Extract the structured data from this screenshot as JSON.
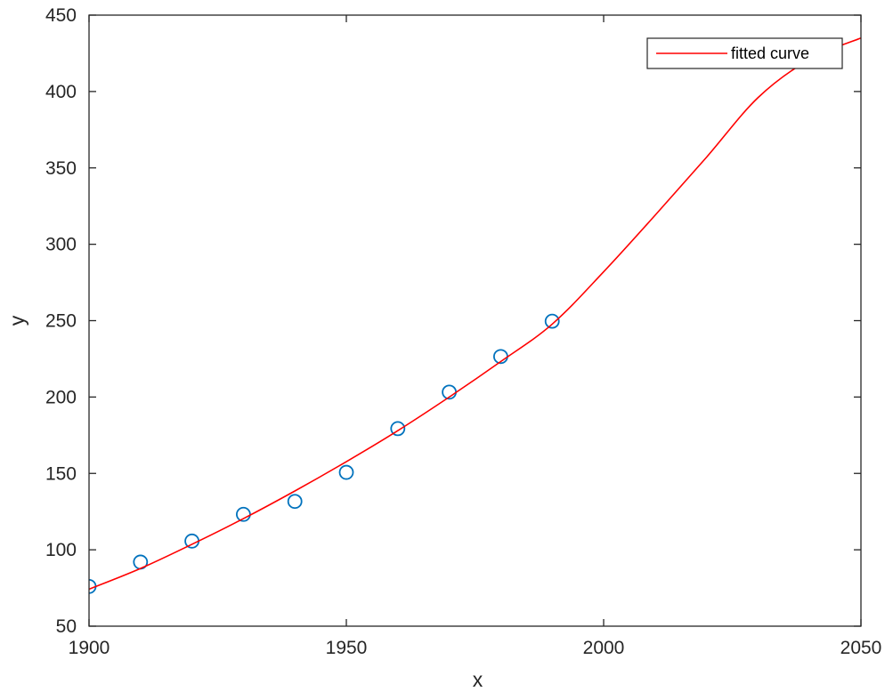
{
  "chart_data": {
    "type": "scatter",
    "xlabel": "x",
    "ylabel": "y",
    "xlim": [
      1900,
      2050
    ],
    "ylim": [
      50,
      450
    ],
    "xticks": [
      "1900",
      "1950",
      "2000",
      "2050"
    ],
    "yticks": [
      "50",
      "100",
      "150",
      "200",
      "250",
      "300",
      "350",
      "400",
      "450"
    ],
    "grid": false,
    "legend_position": "top-right",
    "series": [
      {
        "kind": "markers",
        "marker": "open-circle",
        "color": "#0072BD",
        "x": [
          1900,
          1910,
          1920,
          1930,
          1940,
          1950,
          1960,
          1970,
          1980,
          1990
        ],
        "y": [
          75.995,
          91.972,
          105.711,
          123.203,
          131.669,
          150.697,
          179.323,
          203.212,
          226.505,
          249.633
        ]
      },
      {
        "name": "fitted curve",
        "kind": "line",
        "color": "#FF0000",
        "x": [
          1900,
          1910,
          1920,
          1930,
          1940,
          1950,
          1960,
          1970,
          1980,
          1990,
          2000,
          2010,
          2020,
          2030,
          2040,
          2050
        ],
        "y": [
          74.2,
          87.8,
          103.6,
          120.4,
          138.5,
          157.7,
          178.0,
          200.0,
          223.2,
          247.7,
          282.0,
          319.0,
          357.0,
          396.0,
          421.0,
          435.0
        ]
      }
    ]
  }
}
